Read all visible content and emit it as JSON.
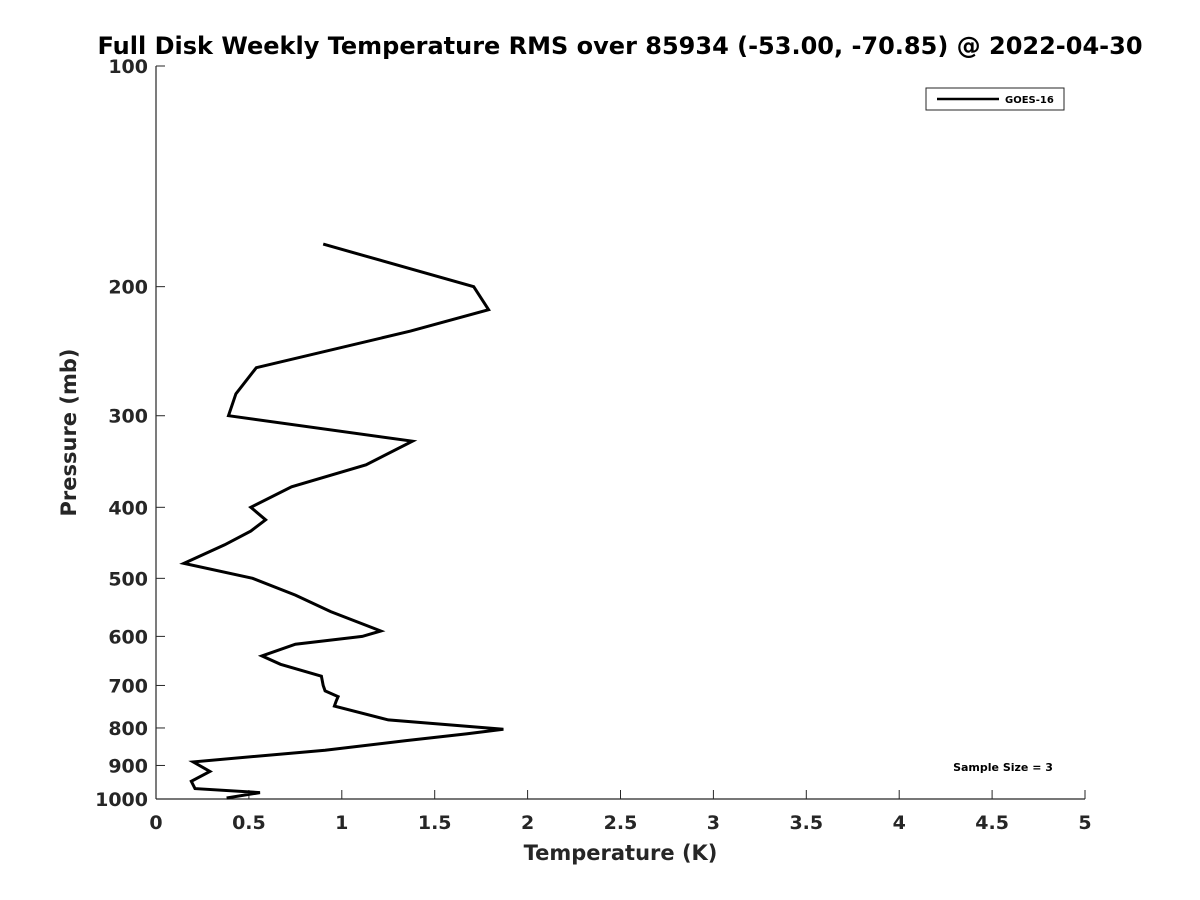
{
  "chart_data": {
    "type": "line",
    "title": "Full Disk Weekly Temperature RMS over 85934 (-53.00, -70.85) @ 2022-04-30",
    "xlabel": "Temperature (K)",
    "ylabel": "Pressure (mb)",
    "xlim": [
      0,
      5
    ],
    "ylim": [
      100,
      1000
    ],
    "y_scale": "log",
    "y_reversed": true,
    "x_ticks": [
      "0",
      "0.5",
      "1",
      "1.5",
      "2",
      "2.5",
      "3",
      "3.5",
      "4",
      "4.5",
      "5"
    ],
    "y_ticks": [
      "100",
      "200",
      "300",
      "400",
      "500",
      "600",
      "700",
      "800",
      "900",
      "1000"
    ],
    "grid": false,
    "legend_position": "top-right",
    "annotation": "Sample Size = 3",
    "series": [
      {
        "name": "GOES-16",
        "color": "#000000",
        "x": [
          0.9,
          1.71,
          1.79,
          1.37,
          0.54,
          0.43,
          0.39,
          1.38,
          1.13,
          0.73,
          0.51,
          0.59,
          0.51,
          0.37,
          0.15,
          0.52,
          0.75,
          0.94,
          1.21,
          1.11,
          0.75,
          0.57,
          0.67,
          0.89,
          0.9,
          0.91,
          0.98,
          0.97,
          0.96,
          1.25,
          1.87,
          1.67,
          1.34,
          0.91,
          0.2,
          0.29,
          0.19,
          0.21,
          0.56,
          0.38
        ],
        "y": [
          175,
          200,
          215,
          230,
          258,
          280,
          300,
          325,
          350,
          375,
          400,
          416,
          431,
          450,
          477,
          500,
          527,
          555,
          590,
          600,
          615,
          638,
          655,
          680,
          700,
          712,
          725,
          735,
          747,
          780,
          803,
          815,
          833,
          858,
          890,
          917,
          946,
          968,
          980,
          997
        ]
      }
    ]
  }
}
